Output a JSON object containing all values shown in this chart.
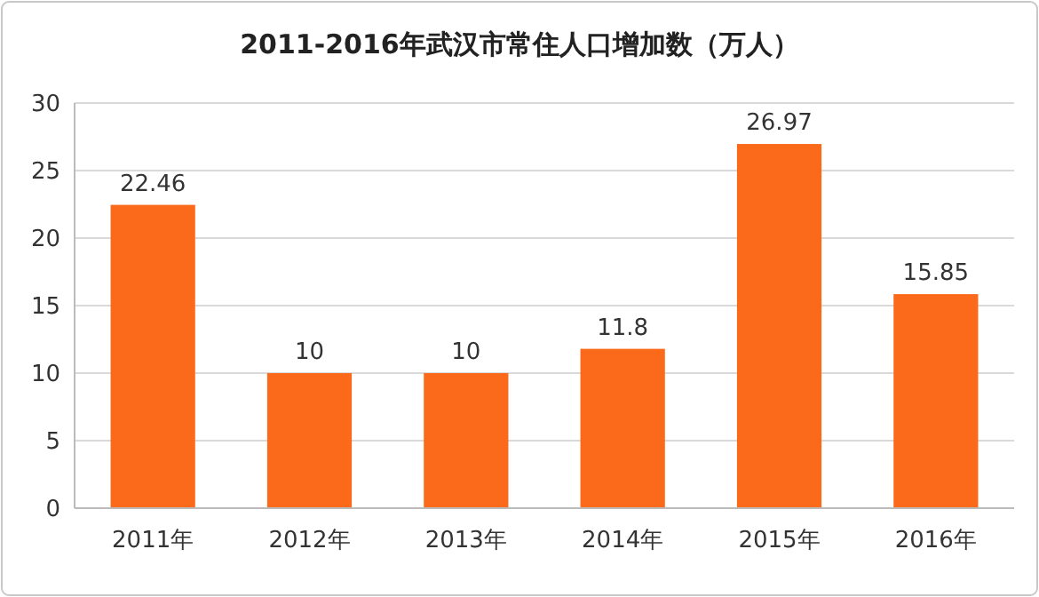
{
  "chart_data": {
    "type": "bar",
    "title": "2011-2016年武汉市常住人口增加数（万人）",
    "categories": [
      "2011年",
      "2012年",
      "2013年",
      "2014年",
      "2015年",
      "2016年"
    ],
    "values": [
      22.46,
      10,
      10,
      11.8,
      26.97,
      15.85
    ],
    "color": "#fb6a1b",
    "ylim": [
      0,
      30
    ],
    "yticks": [
      0,
      5,
      10,
      15,
      20,
      25,
      30
    ],
    "grid": "y",
    "data_labels": true
  }
}
